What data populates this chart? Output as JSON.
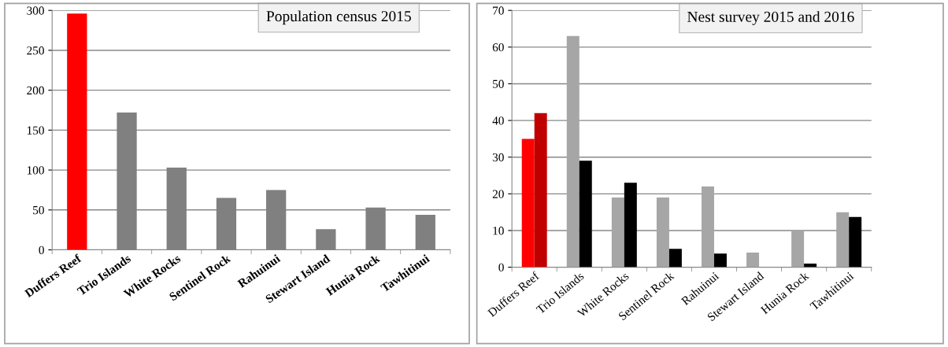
{
  "chart_data": [
    {
      "type": "bar",
      "title": "Population census 2015",
      "categories": [
        "Duffers Reef",
        "Trio Islands",
        "White Rocks",
        "Sentinel Rock",
        "Rahuinui",
        "Stewart Island",
        "Hunia Rock",
        "Tawhitinui"
      ],
      "values": [
        296,
        172,
        103,
        65,
        75,
        26,
        53,
        44
      ],
      "colors": [
        "#ff0000",
        "#808080",
        "#808080",
        "#808080",
        "#808080",
        "#808080",
        "#808080",
        "#808080"
      ],
      "ylim": [
        0,
        300
      ],
      "yticks": [
        0,
        50,
        100,
        150,
        200,
        250,
        300
      ],
      "grid": "y"
    },
    {
      "type": "bar",
      "title": "Nest survey 2015 and 2016",
      "categories": [
        "Duffers Reef",
        "Trio Islands",
        "White Rocks",
        "Sentinel Rock",
        "Rahuinui",
        "Stewart Island",
        "Hunia Rock",
        "Tawhitinui"
      ],
      "series": [
        {
          "colors": [
            "#ff0000",
            "#a6a6a6",
            "#a6a6a6",
            "#a6a6a6",
            "#a6a6a6",
            "#a6a6a6",
            "#a6a6a6",
            "#a6a6a6"
          ],
          "values": [
            35,
            63,
            19,
            19,
            22,
            4,
            10,
            15
          ]
        },
        {
          "colors": [
            "#c00000",
            "#000000",
            "#000000",
            "#000000",
            "#000000",
            "#000000",
            "#000000",
            "#000000"
          ],
          "values": [
            42,
            29,
            23,
            5,
            3.7,
            null,
            1,
            13.7
          ]
        }
      ],
      "ylim": [
        0,
        70
      ],
      "yticks": [
        0,
        10,
        20,
        30,
        40,
        50,
        60,
        70
      ],
      "grid": "y"
    }
  ]
}
